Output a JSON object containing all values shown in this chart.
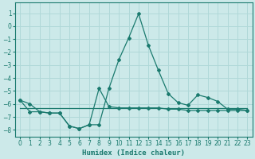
{
  "xlabel": "Humidex (Indice chaleur)",
  "bg_color": "#cce9e9",
  "grid_color": "#b0d8d8",
  "line_color": "#1a7a6e",
  "xlim": [
    -0.5,
    23.5
  ],
  "ylim": [
    -8.5,
    1.8
  ],
  "yticks": [
    1,
    0,
    -1,
    -2,
    -3,
    -4,
    -5,
    -6,
    -7,
    -8
  ],
  "xticks": [
    0,
    1,
    2,
    3,
    4,
    5,
    6,
    7,
    8,
    9,
    10,
    11,
    12,
    13,
    14,
    15,
    16,
    17,
    18,
    19,
    20,
    21,
    22,
    23
  ],
  "line1_x": [
    0,
    1,
    2,
    3,
    4,
    5,
    6,
    7,
    8,
    9,
    10,
    11,
    12,
    13,
    14,
    15,
    16,
    17,
    18,
    19,
    20,
    21,
    22,
    23
  ],
  "line1_y": [
    -5.7,
    -6.0,
    -6.6,
    -6.7,
    -6.7,
    -7.7,
    -7.9,
    -7.6,
    -7.6,
    -4.8,
    -2.6,
    -0.9,
    0.95,
    -1.5,
    -3.4,
    -5.2,
    -5.9,
    -6.1,
    -5.3,
    -5.5,
    -5.8,
    -6.4,
    -6.4,
    -6.5
  ],
  "line2_x": [
    0,
    1,
    2,
    3,
    4,
    5,
    6,
    7,
    8,
    9,
    10,
    11,
    12,
    13,
    14,
    15,
    16,
    17,
    18,
    19,
    20,
    21,
    22,
    23
  ],
  "line2_y": [
    -5.7,
    -6.6,
    -6.6,
    -6.7,
    -6.7,
    -7.7,
    -7.9,
    -7.6,
    -4.8,
    -6.2,
    -6.3,
    -6.3,
    -6.3,
    -6.3,
    -6.3,
    -6.4,
    -6.4,
    -6.5,
    -6.5,
    -6.5,
    -6.5,
    -6.5,
    -6.5,
    -6.5
  ],
  "line3_x": [
    0,
    9,
    10,
    11,
    12,
    13,
    14,
    15,
    16,
    17,
    18,
    19,
    20,
    21,
    22,
    23
  ],
  "line3_y": [
    -6.3,
    -6.3,
    -6.3,
    -6.3,
    -6.3,
    -6.3,
    -6.3,
    -6.3,
    -6.3,
    -6.3,
    -6.3,
    -6.3,
    -6.3,
    -6.3,
    -6.3,
    -6.3
  ]
}
